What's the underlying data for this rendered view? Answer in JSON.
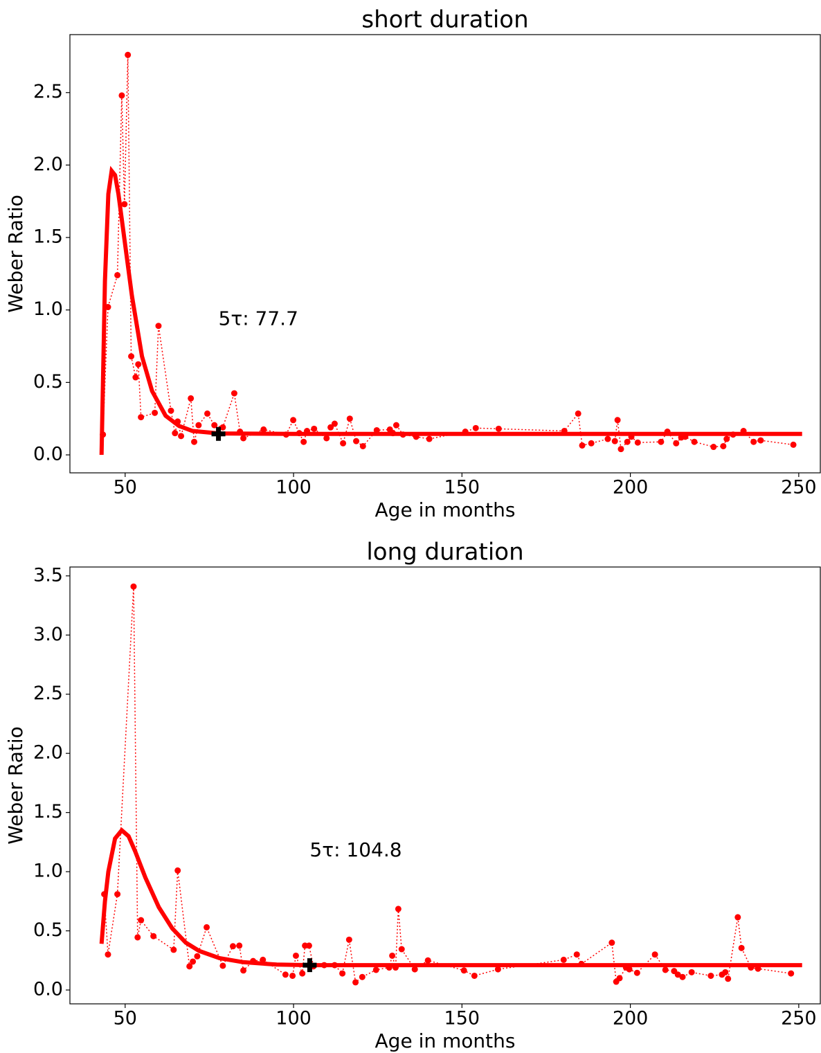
{
  "chart_data": [
    {
      "type": "line",
      "title": "short duration",
      "x_label": "Age in months",
      "y_label": "Weber Ratio",
      "xlim": [
        33.6,
        256.4
      ],
      "ylim": [
        -0.124,
        2.9
      ],
      "xticks": [
        50,
        100,
        150,
        200,
        250
      ],
      "yticks": [
        {
          "value": 0,
          "label": "0.0"
        },
        {
          "value": 0.5,
          "label": "0.5"
        },
        {
          "value": 1,
          "label": "1.0"
        },
        {
          "value": 1.5,
          "label": "1.5"
        },
        {
          "value": 2,
          "label": "2.0"
        },
        {
          "value": 2.5,
          "label": "2.5"
        }
      ],
      "series": [
        {
          "color": "#ff0000",
          "style": "dotted",
          "x": [
            43.4,
            44.9,
            47.7,
            49,
            49.8,
            50.8,
            51.8,
            53.1,
            53.9,
            54.7,
            58.8,
            59.9,
            63.6,
            64.8,
            65.6,
            66.6,
            69.5,
            70.5,
            71.8,
            74.4,
            76.5,
            79,
            82.4,
            84.1,
            85.1,
            91.1,
            97.8,
            99.9,
            101.7,
            103,
            104,
            106.1,
            109.8,
            111,
            112.2,
            114.7,
            116.7,
            118.6,
            120.6,
            124.7,
            128.6,
            129.5,
            130.5,
            132.5,
            136.4,
            140.3,
            151,
            154.1,
            160.9,
            180.4,
            184.5,
            185.7,
            188.4,
            193.3,
            195.4,
            196.2,
            197.2,
            199.1,
            200.3,
            202.2,
            209.1,
            211,
            213.6,
            215.1,
            216.3,
            219,
            224.7,
            227.6,
            228.6,
            230.5,
            233.6,
            236.6,
            238.7,
            248.4
          ],
          "values": [
            0.14,
            1.02,
            1.24,
            2.48,
            1.73,
            2.76,
            0.68,
            0.535,
            0.625,
            0.26,
            0.29,
            0.89,
            0.305,
            0.15,
            0.23,
            0.13,
            0.39,
            0.09,
            0.205,
            0.285,
            0.205,
            0.19,
            0.425,
            0.16,
            0.115,
            0.175,
            0.14,
            0.24,
            0.15,
            0.09,
            0.165,
            0.18,
            0.115,
            0.19,
            0.215,
            0.08,
            0.25,
            0.095,
            0.06,
            0.17,
            0.175,
            0.15,
            0.205,
            0.14,
            0.125,
            0.11,
            0.16,
            0.185,
            0.18,
            0.165,
            0.285,
            0.065,
            0.08,
            0.11,
            0.095,
            0.24,
            0.04,
            0.09,
            0.125,
            0.085,
            0.09,
            0.16,
            0.08,
            0.12,
            0.125,
            0.09,
            0.055,
            0.06,
            0.11,
            0.14,
            0.165,
            0.09,
            0.1,
            0.07
          ]
        },
        {
          "color": "#ff0000",
          "style": "fit",
          "x": [
            43,
            44,
            45,
            46,
            47,
            48,
            50,
            52,
            55,
            58,
            62,
            66,
            70,
            78,
            100,
            150,
            251
          ],
          "values": [
            0,
            1.2,
            1.8,
            1.96,
            1.93,
            1.8,
            1.45,
            1.1,
            0.68,
            0.44,
            0.27,
            0.2,
            0.165,
            0.148,
            0.145,
            0.145,
            0.145
          ]
        }
      ],
      "marker": {
        "x": 77.7,
        "y": 0.145,
        "color": "#000000"
      },
      "annotation": "5τ: 77.7"
    },
    {
      "type": "line",
      "title": "long duration",
      "x_label": "Age in months",
      "y_label": "Weber Ratio",
      "xlim": [
        33.6,
        256.4
      ],
      "ylim": [
        -0.117,
        3.575
      ],
      "xticks": [
        50,
        100,
        150,
        200,
        250
      ],
      "yticks": [
        {
          "value": 0,
          "label": "0.0"
        },
        {
          "value": 0.5,
          "label": "0.5"
        },
        {
          "value": 1,
          "label": "1.0"
        },
        {
          "value": 1.5,
          "label": "1.5"
        },
        {
          "value": 2,
          "label": "2.0"
        },
        {
          "value": 2.5,
          "label": "2.5"
        },
        {
          "value": 3,
          "label": "3.0"
        },
        {
          "value": 3.5,
          "label": "3.5"
        }
      ],
      "series": [
        {
          "color": "#ff0000",
          "style": "dotted",
          "x": [
            43.8,
            44.9,
            47.7,
            52.5,
            53.7,
            54.7,
            58.4,
            64.4,
            65.6,
            69.1,
            70.1,
            71.4,
            74.2,
            79,
            82,
            83.9,
            85.1,
            88,
            90.9,
            97.6,
            99.7,
            100.7,
            102.6,
            103.4,
            104.6,
            105.9,
            109.1,
            112.2,
            114.5,
            116.5,
            118.4,
            120.4,
            124.5,
            128.4,
            129.3,
            130.3,
            131.1,
            132.1,
            136,
            139.9,
            150.6,
            153.7,
            160.7,
            180.2,
            184.1,
            185.5,
            194.5,
            195.8,
            196.8,
            198.7,
            199.7,
            202,
            207.3,
            210.4,
            213,
            214.1,
            215.5,
            218.2,
            223.9,
            227.2,
            228.2,
            229,
            231.9,
            233,
            235.8,
            237.9,
            247.7
          ],
          "values": [
            0.81,
            0.3,
            0.81,
            3.41,
            0.445,
            0.59,
            0.455,
            0.34,
            1.01,
            0.2,
            0.24,
            0.285,
            0.53,
            0.205,
            0.37,
            0.375,
            0.165,
            0.245,
            0.255,
            0.13,
            0.12,
            0.29,
            0.14,
            0.375,
            0.375,
            0.2,
            0.21,
            0.21,
            0.14,
            0.425,
            0.065,
            0.11,
            0.17,
            0.19,
            0.29,
            0.19,
            0.685,
            0.345,
            0.175,
            0.25,
            0.165,
            0.12,
            0.175,
            0.255,
            0.3,
            0.22,
            0.4,
            0.07,
            0.1,
            0.19,
            0.175,
            0.145,
            0.3,
            0.17,
            0.16,
            0.13,
            0.11,
            0.15,
            0.12,
            0.13,
            0.15,
            0.095,
            0.615,
            0.355,
            0.19,
            0.18,
            0.14
          ]
        },
        {
          "color": "#ff0000",
          "style": "fit",
          "x": [
            43,
            44,
            45,
            47,
            49,
            51,
            53,
            56,
            60,
            64,
            68,
            72,
            78,
            85,
            95,
            105,
            150,
            251
          ],
          "values": [
            0.39,
            0.75,
            1.0,
            1.28,
            1.35,
            1.3,
            1.17,
            0.95,
            0.7,
            0.52,
            0.4,
            0.33,
            0.27,
            0.235,
            0.215,
            0.21,
            0.21,
            0.21
          ]
        }
      ],
      "marker": {
        "x": 104.8,
        "y": 0.21,
        "color": "#000000"
      },
      "annotation": "5τ: 104.8"
    }
  ]
}
